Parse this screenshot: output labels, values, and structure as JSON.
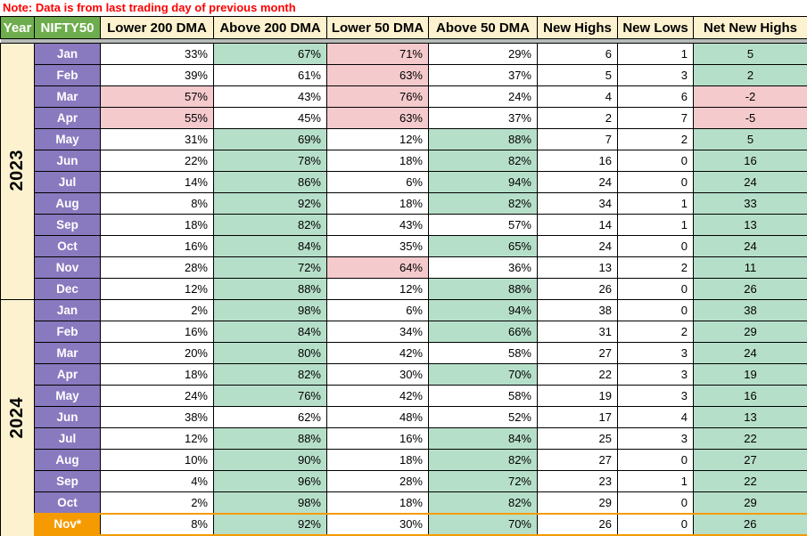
{
  "note": "Note: Data is from last trading day of previous month",
  "palette": {
    "header_green": "#6EAD4D",
    "header_cream": "#FCF2CF",
    "month_purple": "#8979BE",
    "month_orange": "#F59B00",
    "cell_green": "#B6DFC9",
    "cell_pink": "#F4CACD",
    "cell_white": "#FFFFFF",
    "note_red": "#FF0000",
    "divider_gray": "#B7BBB7",
    "highlight_border": "#F59B00"
  },
  "columns": [
    "Year",
    "NIFTY50",
    "Lower 200 DMA",
    "Above 200 DMA",
    "Lower 50 DMA",
    "Above 50 DMA",
    "New Highs",
    "New Lows",
    "Net New Highs"
  ],
  "years": [
    {
      "label": "2023",
      "has_partial": false,
      "rows": [
        {
          "month": "Jan",
          "cells": [
            [
              "33%",
              "w"
            ],
            [
              "67%",
              "g"
            ],
            [
              "71%",
              "p"
            ],
            [
              "29%",
              "w"
            ],
            [
              "6",
              "w"
            ],
            [
              "1",
              "w"
            ],
            [
              "5",
              "g"
            ]
          ]
        },
        {
          "month": "Feb",
          "cells": [
            [
              "39%",
              "w"
            ],
            [
              "61%",
              "w"
            ],
            [
              "63%",
              "p"
            ],
            [
              "37%",
              "w"
            ],
            [
              "5",
              "w"
            ],
            [
              "3",
              "w"
            ],
            [
              "2",
              "g"
            ]
          ]
        },
        {
          "month": "Mar",
          "cells": [
            [
              "57%",
              "p"
            ],
            [
              "43%",
              "w"
            ],
            [
              "76%",
              "p"
            ],
            [
              "24%",
              "w"
            ],
            [
              "4",
              "w"
            ],
            [
              "6",
              "w"
            ],
            [
              "-2",
              "p"
            ]
          ]
        },
        {
          "month": "Apr",
          "cells": [
            [
              "55%",
              "p"
            ],
            [
              "45%",
              "w"
            ],
            [
              "63%",
              "p"
            ],
            [
              "37%",
              "w"
            ],
            [
              "2",
              "w"
            ],
            [
              "7",
              "w"
            ],
            [
              "-5",
              "p"
            ]
          ]
        },
        {
          "month": "May",
          "cells": [
            [
              "31%",
              "w"
            ],
            [
              "69%",
              "g"
            ],
            [
              "12%",
              "w"
            ],
            [
              "88%",
              "g"
            ],
            [
              "7",
              "w"
            ],
            [
              "2",
              "w"
            ],
            [
              "5",
              "g"
            ]
          ]
        },
        {
          "month": "Jun",
          "cells": [
            [
              "22%",
              "w"
            ],
            [
              "78%",
              "g"
            ],
            [
              "18%",
              "w"
            ],
            [
              "82%",
              "g"
            ],
            [
              "16",
              "w"
            ],
            [
              "0",
              "w"
            ],
            [
              "16",
              "g"
            ]
          ]
        },
        {
          "month": "Jul",
          "cells": [
            [
              "14%",
              "w"
            ],
            [
              "86%",
              "g"
            ],
            [
              "6%",
              "w"
            ],
            [
              "94%",
              "g"
            ],
            [
              "24",
              "w"
            ],
            [
              "0",
              "w"
            ],
            [
              "24",
              "g"
            ]
          ]
        },
        {
          "month": "Aug",
          "cells": [
            [
              "8%",
              "w"
            ],
            [
              "92%",
              "g"
            ],
            [
              "18%",
              "w"
            ],
            [
              "82%",
              "g"
            ],
            [
              "34",
              "w"
            ],
            [
              "1",
              "w"
            ],
            [
              "33",
              "g"
            ]
          ]
        },
        {
          "month": "Sep",
          "cells": [
            [
              "18%",
              "w"
            ],
            [
              "82%",
              "g"
            ],
            [
              "43%",
              "w"
            ],
            [
              "57%",
              "w"
            ],
            [
              "14",
              "w"
            ],
            [
              "1",
              "w"
            ],
            [
              "13",
              "g"
            ]
          ]
        },
        {
          "month": "Oct",
          "cells": [
            [
              "16%",
              "w"
            ],
            [
              "84%",
              "g"
            ],
            [
              "35%",
              "w"
            ],
            [
              "65%",
              "g"
            ],
            [
              "24",
              "w"
            ],
            [
              "0",
              "w"
            ],
            [
              "24",
              "g"
            ]
          ]
        },
        {
          "month": "Nov",
          "cells": [
            [
              "28%",
              "w"
            ],
            [
              "72%",
              "g"
            ],
            [
              "64%",
              "p"
            ],
            [
              "36%",
              "w"
            ],
            [
              "13",
              "w"
            ],
            [
              "2",
              "w"
            ],
            [
              "11",
              "g"
            ]
          ]
        },
        {
          "month": "Dec",
          "cells": [
            [
              "12%",
              "w"
            ],
            [
              "88%",
              "g"
            ],
            [
              "12%",
              "w"
            ],
            [
              "88%",
              "g"
            ],
            [
              "26",
              "w"
            ],
            [
              "0",
              "w"
            ],
            [
              "26",
              "g"
            ]
          ]
        }
      ]
    },
    {
      "label": "2024",
      "has_partial": true,
      "rows": [
        {
          "month": "Jan",
          "cells": [
            [
              "2%",
              "w"
            ],
            [
              "98%",
              "g"
            ],
            [
              "6%",
              "w"
            ],
            [
              "94%",
              "g"
            ],
            [
              "38",
              "w"
            ],
            [
              "0",
              "w"
            ],
            [
              "38",
              "g"
            ]
          ]
        },
        {
          "month": "Feb",
          "cells": [
            [
              "16%",
              "w"
            ],
            [
              "84%",
              "g"
            ],
            [
              "34%",
              "w"
            ],
            [
              "66%",
              "g"
            ],
            [
              "31",
              "w"
            ],
            [
              "2",
              "w"
            ],
            [
              "29",
              "g"
            ]
          ]
        },
        {
          "month": "Mar",
          "cells": [
            [
              "20%",
              "w"
            ],
            [
              "80%",
              "g"
            ],
            [
              "42%",
              "w"
            ],
            [
              "58%",
              "w"
            ],
            [
              "27",
              "w"
            ],
            [
              "3",
              "w"
            ],
            [
              "24",
              "g"
            ]
          ]
        },
        {
          "month": "Apr",
          "cells": [
            [
              "18%",
              "w"
            ],
            [
              "82%",
              "g"
            ],
            [
              "30%",
              "w"
            ],
            [
              "70%",
              "g"
            ],
            [
              "22",
              "w"
            ],
            [
              "3",
              "w"
            ],
            [
              "19",
              "g"
            ]
          ]
        },
        {
          "month": "May",
          "cells": [
            [
              "24%",
              "w"
            ],
            [
              "76%",
              "g"
            ],
            [
              "42%",
              "w"
            ],
            [
              "58%",
              "w"
            ],
            [
              "19",
              "w"
            ],
            [
              "3",
              "w"
            ],
            [
              "16",
              "g"
            ]
          ]
        },
        {
          "month": "Jun",
          "cells": [
            [
              "38%",
              "w"
            ],
            [
              "62%",
              "w"
            ],
            [
              "48%",
              "w"
            ],
            [
              "52%",
              "w"
            ],
            [
              "17",
              "w"
            ],
            [
              "4",
              "w"
            ],
            [
              "13",
              "g"
            ]
          ]
        },
        {
          "month": "Jul",
          "cells": [
            [
              "12%",
              "w"
            ],
            [
              "88%",
              "g"
            ],
            [
              "16%",
              "w"
            ],
            [
              "84%",
              "g"
            ],
            [
              "25",
              "w"
            ],
            [
              "3",
              "w"
            ],
            [
              "22",
              "g"
            ]
          ]
        },
        {
          "month": "Aug",
          "cells": [
            [
              "10%",
              "w"
            ],
            [
              "90%",
              "g"
            ],
            [
              "18%",
              "w"
            ],
            [
              "82%",
              "g"
            ],
            [
              "27",
              "w"
            ],
            [
              "0",
              "w"
            ],
            [
              "27",
              "g"
            ]
          ]
        },
        {
          "month": "Sep",
          "cells": [
            [
              "4%",
              "w"
            ],
            [
              "96%",
              "g"
            ],
            [
              "28%",
              "w"
            ],
            [
              "72%",
              "g"
            ],
            [
              "23",
              "w"
            ],
            [
              "1",
              "w"
            ],
            [
              "22",
              "g"
            ]
          ]
        },
        {
          "month": "Oct",
          "cells": [
            [
              "2%",
              "w"
            ],
            [
              "98%",
              "g"
            ],
            [
              "18%",
              "w"
            ],
            [
              "82%",
              "g"
            ],
            [
              "29",
              "w"
            ],
            [
              "0",
              "w"
            ],
            [
              "29",
              "g"
            ]
          ]
        },
        {
          "month": "Nov*",
          "highlight": true,
          "cells": [
            [
              "8%",
              "w"
            ],
            [
              "92%",
              "g"
            ],
            [
              "30%",
              "w"
            ],
            [
              "70%",
              "g"
            ],
            [
              "26",
              "w"
            ],
            [
              "0",
              "w"
            ],
            [
              "26",
              "g"
            ]
          ]
        }
      ]
    }
  ],
  "partial_row_bgs": [
    "w",
    "g",
    "w",
    "g",
    "w",
    "w",
    "g"
  ]
}
